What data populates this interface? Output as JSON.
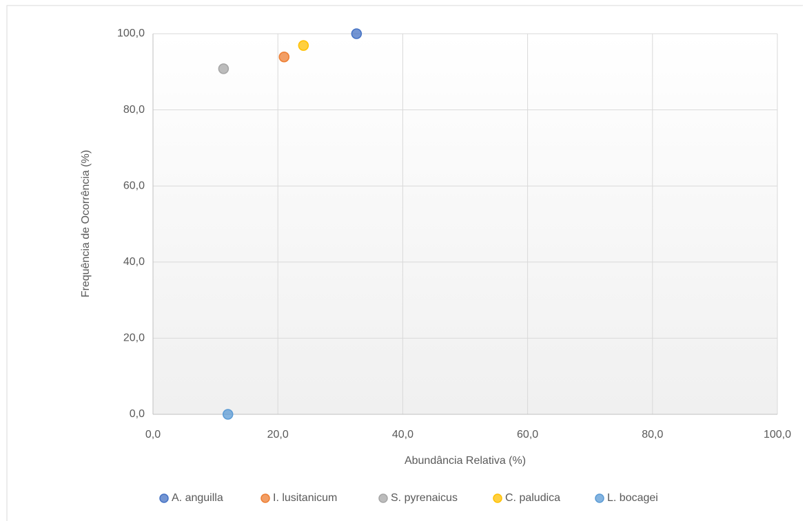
{
  "chart_data": {
    "type": "scatter",
    "x_label": "Abundância Relativa (%)",
    "y_label": "Frequência de Ocorrência (%)",
    "xlim": [
      0,
      100
    ],
    "ylim": [
      0,
      100
    ],
    "xticks": [
      {
        "value": 0,
        "label": "0,0"
      },
      {
        "value": 20,
        "label": "20,0"
      },
      {
        "value": 40,
        "label": "40,0"
      },
      {
        "value": 60,
        "label": "60,0"
      },
      {
        "value": 80,
        "label": "80,0"
      },
      {
        "value": 100,
        "label": "100,0"
      }
    ],
    "yticks": [
      {
        "value": 0,
        "label": "0,0"
      },
      {
        "value": 20,
        "label": "20,0"
      },
      {
        "value": 40,
        "label": "40,0"
      },
      {
        "value": 60,
        "label": "60,0"
      },
      {
        "value": 80,
        "label": "80,0"
      },
      {
        "value": 100,
        "label": "100,0"
      }
    ],
    "grid": true,
    "legend": "bottom",
    "series": [
      {
        "name": "A. anguilla",
        "color": "#4472c4",
        "x": [
          32.6
        ],
        "values": [
          100
        ]
      },
      {
        "name": "I. lusitanicum",
        "color": "#ed7d31",
        "x": [
          21.0
        ],
        "values": [
          93.9
        ]
      },
      {
        "name": "S. pyrenaicus",
        "color": "#a5a5a5",
        "x": [
          11.3
        ],
        "values": [
          90.8
        ]
      },
      {
        "name": "C. paludica",
        "color": "#ffc000",
        "x": [
          24.1
        ],
        "values": [
          96.9
        ]
      },
      {
        "name": "L. bocagei",
        "color": "#5b9bd5",
        "x": [
          12.0
        ],
        "values": [
          0
        ]
      }
    ]
  }
}
